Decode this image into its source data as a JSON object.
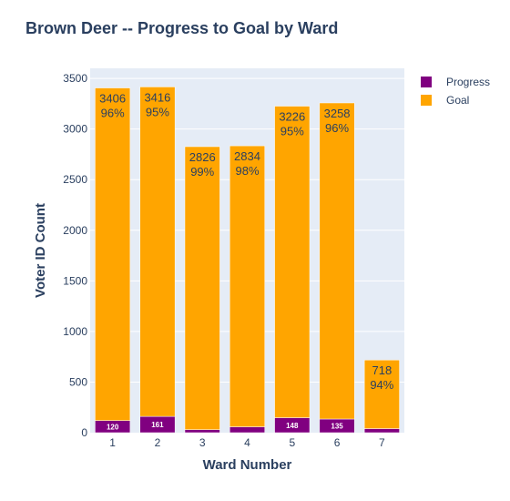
{
  "chart_data": {
    "type": "bar",
    "barmode": "stack",
    "title": "Brown Deer -- Progress to Goal by Ward",
    "xlabel": "Ward Number",
    "ylabel": "Voter ID Count",
    "categories": [
      "1",
      "2",
      "3",
      "4",
      "5",
      "6",
      "7"
    ],
    "ylim": [
      0,
      3600
    ],
    "yticks": [
      0,
      500,
      1000,
      1500,
      2000,
      2500,
      3000,
      3500
    ],
    "grid": true,
    "legend_position": "top-right",
    "series": [
      {
        "name": "Progress",
        "color": "#800080",
        "values": [
          120,
          161,
          30,
          58,
          148,
          135,
          40
        ],
        "labels": [
          "120",
          "161",
          "",
          "",
          "148",
          "135",
          ""
        ]
      },
      {
        "name": "Goal",
        "color": "#ffa500",
        "values": [
          3286,
          3255,
          2796,
          2776,
          3078,
          3123,
          678
        ],
        "labels": [
          "3406\n96%",
          "3416\n95%",
          "2826\n99%",
          "2834\n98%",
          "3226\n95%",
          "3258\n96%",
          "718\n94%"
        ]
      }
    ]
  }
}
